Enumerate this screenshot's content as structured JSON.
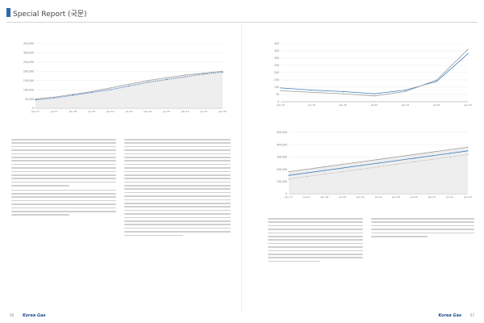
{
  "colors": {
    "accent": "#2c6aa8",
    "brand": "#1f4e8a",
    "series_fill": "#e8e8e8",
    "series_line": "#9e9e9e",
    "series_accent": "#3d7cc0",
    "series_alt": "#bdbdbd"
  },
  "header": {
    "title": "Special Report (국문)"
  },
  "footer": {
    "left_page": "56",
    "right_page": "57",
    "brand": "Korea Gas"
  },
  "charts": {
    "c1": {
      "title": "",
      "source": ""
    },
    "c2": {
      "title": "",
      "source": ""
    },
    "c3": {
      "title": "",
      "source": ""
    }
  },
  "text": {
    "left_col1_para1": "",
    "left_col1_para2": "",
    "left_col1_heading": "",
    "left_col1_para3": "",
    "left_col2_para1": "",
    "left_col2_para2": "",
    "right_col1_para1": "",
    "right_col2_para1": "",
    "right_col2_note": ""
  },
  "chart_data": [
    {
      "type": "area",
      "title": "",
      "x": [
        "Jan-17",
        "Jul-17",
        "Jan-18",
        "Jul-18",
        "Jan-19",
        "Jul-19",
        "Jan-20",
        "Jul-20",
        "Jan-21",
        "Jul-21",
        "Jan-22"
      ],
      "ylim": [
        0,
        350000
      ],
      "y_ticks": [
        0,
        50000,
        100000,
        150000,
        200000,
        250000,
        300000,
        350000
      ],
      "series": [
        {
          "name": "",
          "values": [
            50000,
            60000,
            75000,
            90000,
            110000,
            130000,
            150000,
            165000,
            180000,
            190000,
            200000
          ]
        },
        {
          "name": "",
          "values": [
            45000,
            55000,
            70000,
            85000,
            100000,
            120000,
            140000,
            155000,
            170000,
            185000,
            195000
          ]
        }
      ],
      "legend": "top-left",
      "source": ""
    },
    {
      "type": "line",
      "title": "",
      "x": [
        "Jan-19",
        "Jul-19",
        "Jan-20",
        "Jul-20",
        "Jan-21",
        "Jul-21",
        "Jan-22"
      ],
      "ylim": [
        0,
        400
      ],
      "y_ticks": [
        0,
        50,
        100,
        150,
        200,
        250,
        300,
        350,
        400
      ],
      "series": [
        {
          "name": "",
          "values": [
            95,
            80,
            70,
            55,
            80,
            140,
            330
          ]
        },
        {
          "name": "",
          "values": [
            75,
            65,
            55,
            40,
            70,
            150,
            360
          ]
        }
      ],
      "legend": "top-left",
      "source": ""
    },
    {
      "type": "area",
      "title": "",
      "x": [
        "Jan-17",
        "Jul-17",
        "Jan-18",
        "Jul-18",
        "Jan-19",
        "Jul-19",
        "Jan-20",
        "Jul-20",
        "Jan-21",
        "Jul-21",
        "Jan-22"
      ],
      "ylim": [
        0,
        500000
      ],
      "y_ticks": [
        0,
        100000,
        200000,
        300000,
        400000,
        500000
      ],
      "series": [
        {
          "name": "",
          "values": [
            180000,
            200000,
            220000,
            240000,
            260000,
            280000,
            300000,
            320000,
            340000,
            360000,
            380000
          ]
        },
        {
          "name": "",
          "values": [
            150000,
            170000,
            190000,
            210000,
            230000,
            250000,
            270000,
            290000,
            310000,
            330000,
            350000
          ]
        },
        {
          "name": "",
          "values": [
            120000,
            140000,
            160000,
            180000,
            200000,
            220000,
            240000,
            260000,
            280000,
            300000,
            320000
          ]
        }
      ],
      "legend": "top-left",
      "source": ""
    }
  ]
}
